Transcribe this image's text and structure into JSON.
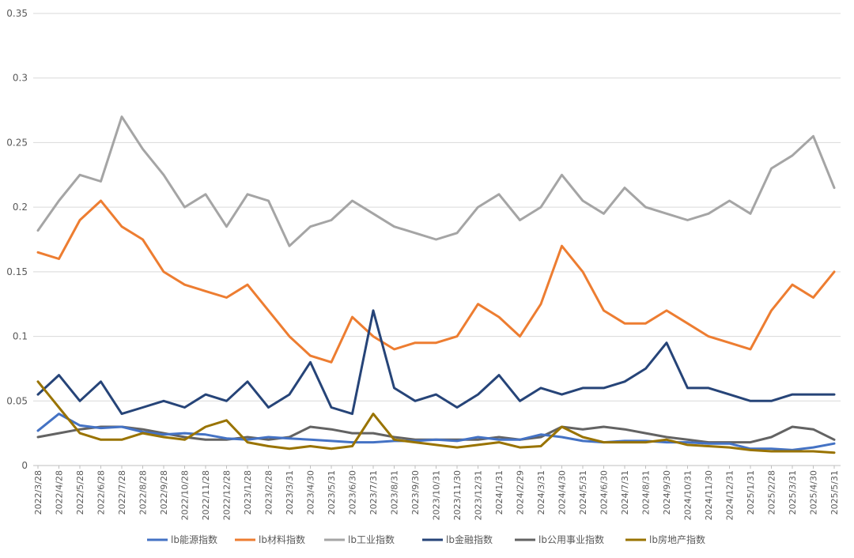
{
  "chart_data": {
    "type": "line",
    "title": "",
    "xlabel": "",
    "ylabel": "",
    "ylim": [
      0,
      0.35
    ],
    "yticks": [
      "0",
      "0.05",
      "0.1",
      "0.15",
      "0.2",
      "0.25",
      "0.3",
      "0.35"
    ],
    "grid": true,
    "legend_position": "bottom",
    "xtick_labels": [
      "2022/3/28",
      "2022/4/28",
      "2022/5/28",
      "2022/6/28",
      "2022/7/28",
      "2022/8/28",
      "2022/9/28",
      "2022/10/28",
      "2022/11/28",
      "2022/12/28",
      "2023/1/28",
      "2023/2/28",
      "2023/3/31",
      "2023/4/30",
      "2023/5/31",
      "2023/6/30",
      "2023/7/31",
      "2023/8/31",
      "2023/9/30",
      "2023/10/31",
      "2023/11/30",
      "2023/12/31",
      "2024/1/31",
      "2024/2/29",
      "2024/3/31",
      "2024/4/30",
      "2024/5/31",
      "2024/6/30",
      "2024/7/31",
      "2024/8/31",
      "2024/9/30",
      "2024/10/31",
      "2024/11/30",
      "2024/12/31",
      "2025/1/31",
      "2025/2/28",
      "2025/3/31",
      "2025/4/30",
      "2025/5/31"
    ],
    "series": [
      {
        "name": "lb能源指数",
        "color": "#4472C4",
        "values": [
          0.027,
          0.04,
          0.031,
          0.029,
          0.03,
          0.026,
          0.024,
          0.025,
          0.024,
          0.021,
          0.02,
          0.022,
          0.021,
          0.02,
          0.019,
          0.018,
          0.018,
          0.019,
          0.019,
          0.02,
          0.019,
          0.022,
          0.02,
          0.02,
          0.024,
          0.022,
          0.019,
          0.018,
          0.019,
          0.019,
          0.018,
          0.018,
          0.017,
          0.017,
          0.013,
          0.013,
          0.012,
          0.014,
          0.017
        ]
      },
      {
        "name": "lb材料指数",
        "color": "#ED7D31",
        "values": [
          0.165,
          0.16,
          0.19,
          0.205,
          0.185,
          0.175,
          0.15,
          0.14,
          0.135,
          0.13,
          0.14,
          0.12,
          0.1,
          0.085,
          0.08,
          0.115,
          0.1,
          0.09,
          0.095,
          0.095,
          0.1,
          0.125,
          0.115,
          0.1,
          0.125,
          0.17,
          0.15,
          0.12,
          0.11,
          0.11,
          0.12,
          0.11,
          0.1,
          0.095,
          0.09,
          0.12,
          0.14,
          0.13,
          0.15
        ]
      },
      {
        "name": "lb工业指数",
        "color": "#A5A5A5",
        "values": [
          0.182,
          0.205,
          0.225,
          0.22,
          0.27,
          0.245,
          0.225,
          0.2,
          0.21,
          0.185,
          0.21,
          0.205,
          0.17,
          0.185,
          0.19,
          0.205,
          0.195,
          0.185,
          0.18,
          0.175,
          0.18,
          0.2,
          0.21,
          0.19,
          0.2,
          0.225,
          0.205,
          0.195,
          0.215,
          0.2,
          0.195,
          0.19,
          0.195,
          0.205,
          0.195,
          0.23,
          0.24,
          0.255,
          0.215
        ]
      },
      {
        "name": "lb金融指数",
        "color": "#264478",
        "values": [
          0.055,
          0.07,
          0.05,
          0.065,
          0.04,
          0.045,
          0.05,
          0.045,
          0.055,
          0.05,
          0.065,
          0.045,
          0.055,
          0.08,
          0.045,
          0.04,
          0.12,
          0.06,
          0.05,
          0.055,
          0.045,
          0.055,
          0.07,
          0.05,
          0.06,
          0.055,
          0.06,
          0.06,
          0.065,
          0.075,
          0.095,
          0.06,
          0.06,
          0.055,
          0.05,
          0.05,
          0.055,
          0.055,
          0.055
        ]
      },
      {
        "name": "lb公用事业指数",
        "color": "#636363",
        "values": [
          0.022,
          0.025,
          0.028,
          0.03,
          0.03,
          0.028,
          0.025,
          0.022,
          0.02,
          0.02,
          0.022,
          0.02,
          0.022,
          0.03,
          0.028,
          0.025,
          0.025,
          0.022,
          0.02,
          0.02,
          0.02,
          0.02,
          0.022,
          0.02,
          0.022,
          0.03,
          0.028,
          0.03,
          0.028,
          0.025,
          0.022,
          0.02,
          0.018,
          0.018,
          0.018,
          0.022,
          0.03,
          0.028,
          0.02
        ]
      },
      {
        "name": "lb房地产指数",
        "color": "#997300",
        "values": [
          0.065,
          0.045,
          0.025,
          0.02,
          0.02,
          0.025,
          0.022,
          0.02,
          0.03,
          0.035,
          0.018,
          0.015,
          0.013,
          0.015,
          0.013,
          0.015,
          0.04,
          0.02,
          0.018,
          0.016,
          0.014,
          0.016,
          0.018,
          0.014,
          0.015,
          0.03,
          0.022,
          0.018,
          0.018,
          0.018,
          0.02,
          0.016,
          0.015,
          0.014,
          0.012,
          0.011,
          0.011,
          0.011,
          0.01
        ]
      }
    ]
  }
}
